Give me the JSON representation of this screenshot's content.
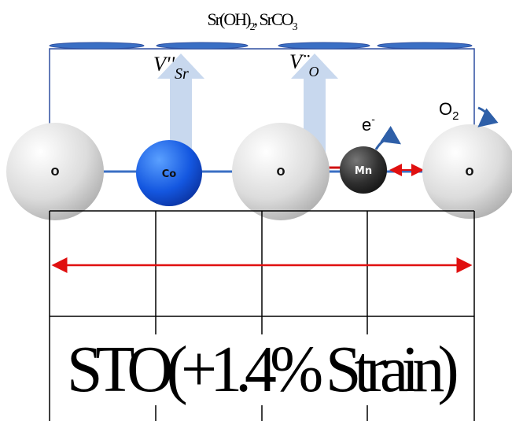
{
  "top_label": {
    "parts": [
      "Sr(OH)",
      "2",
      ", SrCO",
      "3"
    ]
  },
  "defects": [
    {
      "symbol": "V''",
      "sub": "Sr"
    },
    {
      "symbol": "V¨",
      "sub": "O"
    }
  ],
  "atoms": [
    {
      "label": "O"
    },
    {
      "label": "Co"
    },
    {
      "label": "O"
    },
    {
      "label": "Mn"
    },
    {
      "label": "O"
    }
  ],
  "electron": {
    "symbol": "e",
    "sup": "-"
  },
  "oxygen": {
    "symbol": "O",
    "sub": "2"
  },
  "substrate": "STO(+1.4% Strain)"
}
